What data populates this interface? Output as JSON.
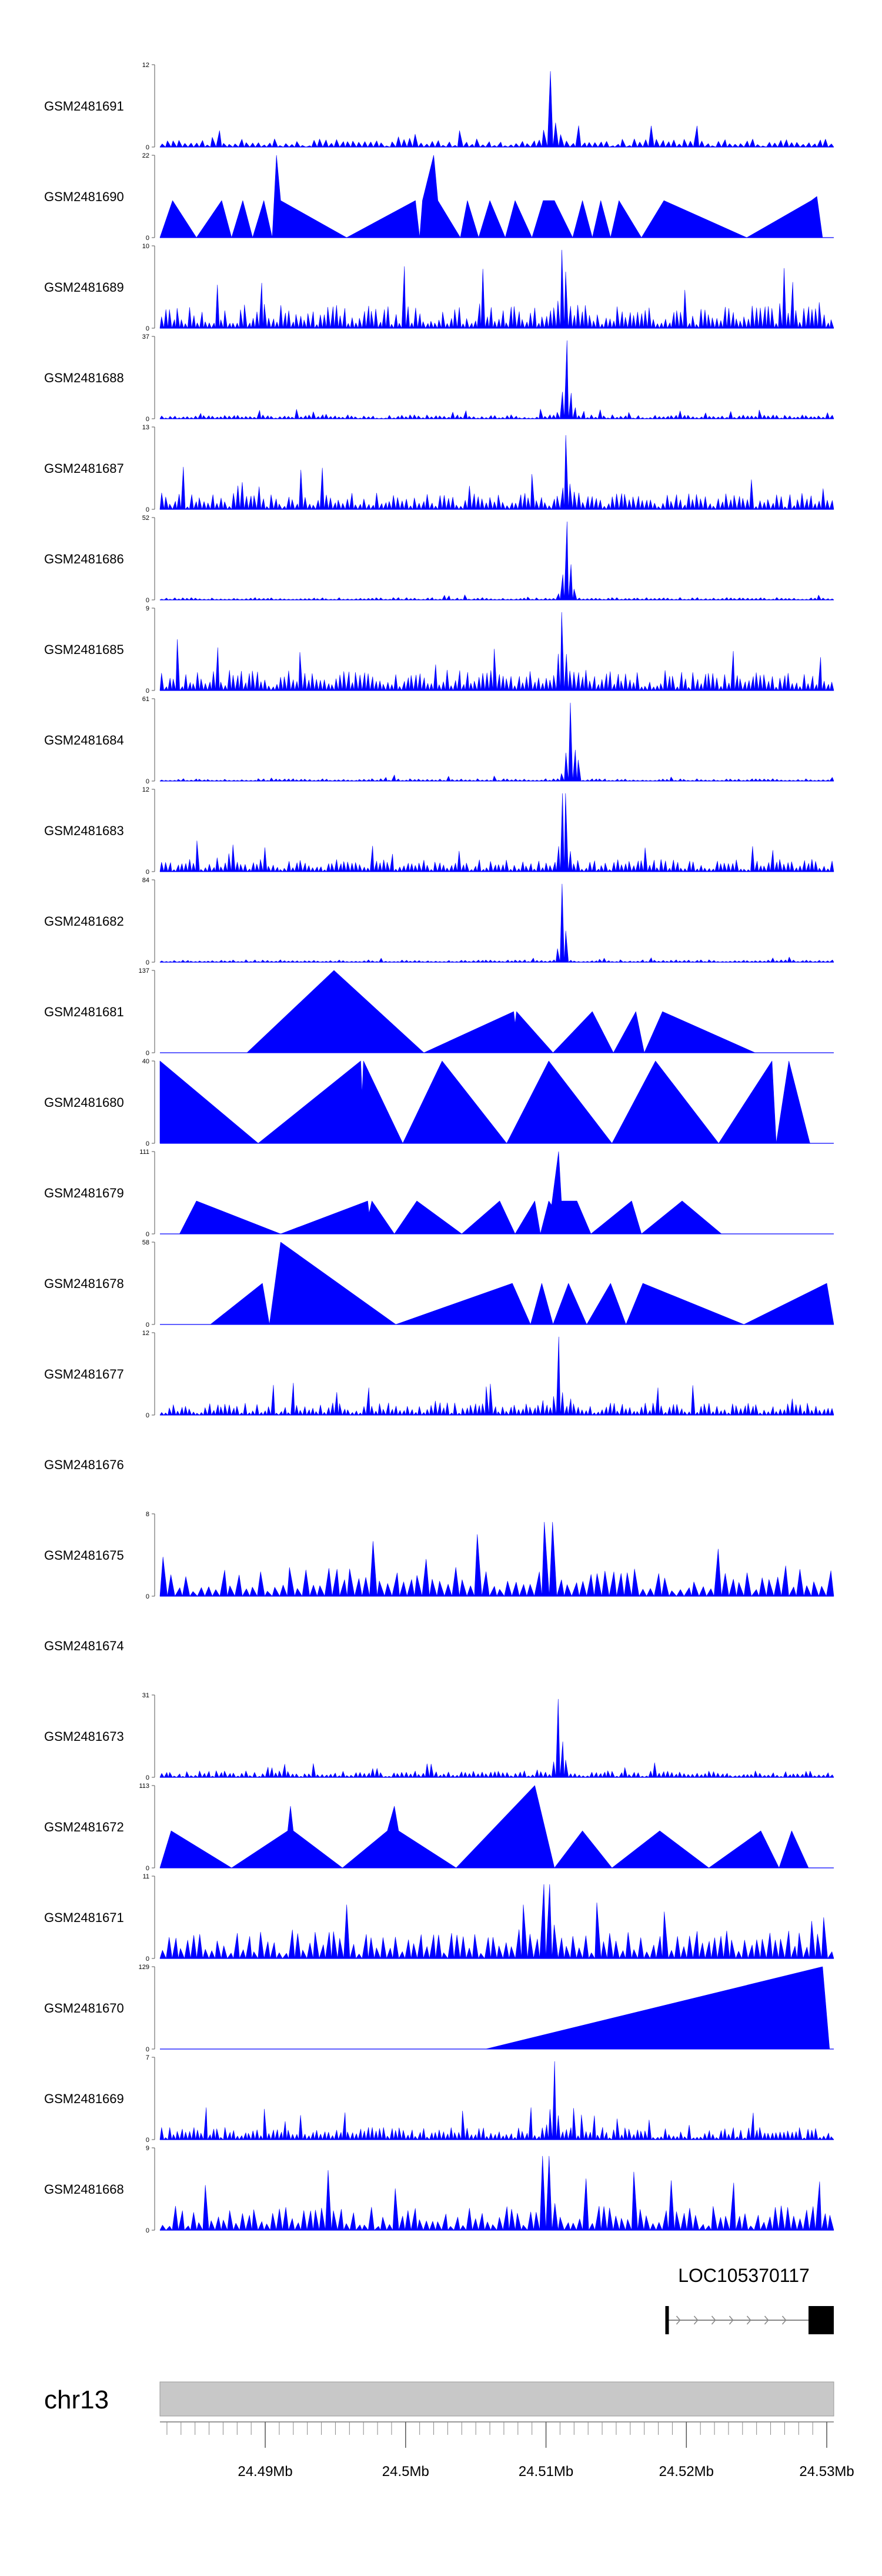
{
  "chart_data": {
    "type": "area",
    "title": "",
    "chromosome": "chr13",
    "x_range": [
      24.4825,
      24.5305
    ],
    "x_unit": "Mb",
    "x_ticks": [
      {
        "value": 24.49,
        "label": "24.49Mb"
      },
      {
        "value": 24.5,
        "label": "24.5Mb"
      },
      {
        "value": 24.51,
        "label": "24.51Mb"
      },
      {
        "value": 24.52,
        "label": "24.52Mb"
      },
      {
        "value": 24.53,
        "label": "24.53Mb"
      }
    ],
    "minor_tick_step": 0.001,
    "fill_color": "#0000ff",
    "gene": {
      "name": "LOC105370117",
      "start": 24.5185,
      "end": 24.5305,
      "strand": "+",
      "exons": [
        [
          24.5185,
          24.5187
        ],
        [
          24.5287,
          24.5305
        ]
      ]
    },
    "tracks": [
      {
        "name": "GSM2481691",
        "ymax": "12",
        "shape": "dense",
        "seed": 11,
        "n": 120,
        "base": 0.1,
        "peaks": [
          [
            24.5103,
            0.0008,
            0.65,
            0.92
          ],
          [
            24.5005,
            0.0003,
            0.5,
            1.0
          ]
        ]
      },
      {
        "name": "GSM2481690",
        "ymax": "22",
        "shape": "tri",
        "points": [
          [
            24.4825,
            0
          ],
          [
            24.4834,
            0.45
          ],
          [
            24.4851,
            0
          ],
          [
            24.4869,
            0.45
          ],
          [
            24.4876,
            0
          ],
          [
            24.4884,
            0.45
          ],
          [
            24.4891,
            0
          ],
          [
            24.4899,
            0.45
          ],
          [
            24.4905,
            0
          ],
          [
            24.4908,
            1.0
          ],
          [
            24.4911,
            0.45
          ],
          [
            24.4958,
            0
          ],
          [
            24.5007,
            0.45
          ],
          [
            24.501,
            0
          ],
          [
            24.5012,
            0.45
          ],
          [
            24.502,
            1.0
          ],
          [
            24.5023,
            0.45
          ],
          [
            24.5039,
            0
          ],
          [
            24.5044,
            0.45
          ],
          [
            24.5052,
            0
          ],
          [
            24.506,
            0.45
          ],
          [
            24.5071,
            0
          ],
          [
            24.5078,
            0.45
          ],
          [
            24.509,
            0
          ],
          [
            24.5098,
            0.45
          ],
          [
            24.5106,
            0.45
          ],
          [
            24.5119,
            0
          ],
          [
            24.5126,
            0.45
          ],
          [
            24.5133,
            0
          ],
          [
            24.5139,
            0.45
          ],
          [
            24.5146,
            0
          ],
          [
            24.5152,
            0.45
          ],
          [
            24.5168,
            0
          ],
          [
            24.5184,
            0.45
          ],
          [
            24.5243,
            0
          ],
          [
            24.5289,
            0.45
          ],
          [
            24.5293,
            0.5
          ],
          [
            24.5297,
            0
          ]
        ]
      },
      {
        "name": "GSM2481689",
        "ymax": "10",
        "shape": "dense",
        "seed": 23,
        "n": 170,
        "base": 0.3,
        "peaks": [
          [
            24.5112,
            0.0008,
            0.7,
            0.95
          ],
          [
            24.5295,
            0.0006,
            0.4,
            0.5
          ]
        ]
      },
      {
        "name": "GSM2481688",
        "ymax": "37",
        "shape": "dense",
        "seed": 37,
        "n": 160,
        "base": 0.05,
        "peaks": [
          [
            24.5115,
            0.0008,
            0.8,
            0.95
          ]
        ]
      },
      {
        "name": "GSM2481687",
        "ymax": "13",
        "shape": "dense",
        "seed": 41,
        "n": 160,
        "base": 0.2,
        "peaks": [
          [
            24.5115,
            0.0008,
            0.6,
            0.9
          ]
        ]
      },
      {
        "name": "GSM2481686",
        "ymax": "52",
        "shape": "dense",
        "seed": 53,
        "n": 160,
        "base": 0.03,
        "peaks": [
          [
            24.5115,
            0.0007,
            0.8,
            0.95
          ]
        ]
      },
      {
        "name": "GSM2481685",
        "ymax": "9",
        "shape": "dense",
        "seed": 61,
        "n": 170,
        "base": 0.25,
        "peaks": [
          [
            24.5112,
            0.0009,
            0.7,
            0.95
          ]
        ]
      },
      {
        "name": "GSM2481684",
        "ymax": "61",
        "shape": "dense",
        "seed": 67,
        "n": 160,
        "base": 0.03,
        "peaks": [
          [
            24.5118,
            0.0008,
            0.8,
            0.95
          ]
        ]
      },
      {
        "name": "GSM2481683",
        "ymax": "12",
        "shape": "dense",
        "seed": 71,
        "n": 170,
        "base": 0.15,
        "peaks": [
          [
            24.5113,
            0.0008,
            0.7,
            0.95
          ]
        ]
      },
      {
        "name": "GSM2481682",
        "ymax": "84",
        "shape": "dense",
        "seed": 79,
        "n": 160,
        "base": 0.03,
        "peaks": [
          [
            24.5112,
            0.0006,
            0.8,
            0.95
          ]
        ]
      },
      {
        "name": "GSM2481681",
        "ymax": "137",
        "shape": "tri",
        "points": [
          [
            24.4887,
            0
          ],
          [
            24.4949,
            1.0
          ],
          [
            24.5013,
            0
          ],
          [
            24.5077,
            0.5
          ],
          [
            24.5078,
            0.35
          ],
          [
            24.5079,
            0.5
          ],
          [
            24.5105,
            0
          ],
          [
            24.5133,
            0.5
          ],
          [
            24.5148,
            0
          ],
          [
            24.5164,
            0.5
          ],
          [
            24.517,
            0
          ],
          [
            24.5183,
            0.5
          ],
          [
            24.5249,
            0
          ]
        ]
      },
      {
        "name": "GSM2481680",
        "ymax": "40",
        "shape": "tri",
        "points": [
          [
            24.4825,
            1.0
          ],
          [
            24.4895,
            0
          ],
          [
            24.4968,
            1.0
          ],
          [
            24.4969,
            0.6
          ],
          [
            24.497,
            1.0
          ],
          [
            24.4998,
            0
          ],
          [
            24.5026,
            1.0
          ],
          [
            24.5072,
            0
          ],
          [
            24.5102,
            1.0
          ],
          [
            24.5147,
            0
          ],
          [
            24.5178,
            1.0
          ],
          [
            24.5223,
            0
          ],
          [
            24.5261,
            1.0
          ],
          [
            24.5264,
            0
          ],
          [
            24.5273,
            1.0
          ],
          [
            24.5288,
            0
          ]
        ]
      },
      {
        "name": "GSM2481679",
        "ymax": "111",
        "shape": "tri",
        "points": [
          [
            24.4839,
            0
          ],
          [
            24.4851,
            0.4
          ],
          [
            24.4911,
            0
          ],
          [
            24.4973,
            0.4
          ],
          [
            24.4974,
            0.25
          ],
          [
            24.4976,
            0.4
          ],
          [
            24.4992,
            0
          ],
          [
            24.5008,
            0.4
          ],
          [
            24.504,
            0
          ],
          [
            24.5067,
            0.4
          ],
          [
            24.5078,
            0
          ],
          [
            24.5092,
            0.4
          ],
          [
            24.5096,
            0
          ],
          [
            24.5102,
            0.4
          ],
          [
            24.5104,
            0.35
          ],
          [
            24.5109,
            1.0
          ],
          [
            24.5111,
            0.4
          ],
          [
            24.5122,
            0.4
          ],
          [
            24.5132,
            0
          ],
          [
            24.5161,
            0.4
          ],
          [
            24.5168,
            0
          ],
          [
            24.5197,
            0.4
          ],
          [
            24.5225,
            0
          ]
        ]
      },
      {
        "name": "GSM2481678",
        "ymax": "58",
        "shape": "tri",
        "points": [
          [
            24.4861,
            0
          ],
          [
            24.4898,
            0.5
          ],
          [
            24.4903,
            0
          ],
          [
            24.4911,
            1.0
          ],
          [
            24.4993,
            0
          ],
          [
            24.5076,
            0.5
          ],
          [
            24.5089,
            0
          ],
          [
            24.5097,
            0.5
          ],
          [
            24.5105,
            0
          ],
          [
            24.5116,
            0.5
          ],
          [
            24.5129,
            0
          ],
          [
            24.5146,
            0.5
          ],
          [
            24.5157,
            0
          ],
          [
            24.5169,
            0.5
          ],
          [
            24.5241,
            0
          ],
          [
            24.53,
            0.5
          ],
          [
            24.5305,
            0
          ]
        ]
      },
      {
        "name": "GSM2481677",
        "ymax": "12",
        "shape": "dense",
        "seed": 97,
        "n": 170,
        "base": 0.15,
        "peaks": [
          [
            24.5109,
            0.0007,
            0.6,
            0.95
          ],
          [
            24.4949,
            0.0003,
            0.3,
            0.4
          ]
        ]
      },
      {
        "name": "GSM2481676",
        "ymax": "",
        "shape": "empty"
      },
      {
        "name": "GSM2481675",
        "ymax": "8",
        "shape": "dense",
        "seed": 101,
        "n": 90,
        "base": 0.35,
        "peaks": [
          [
            24.5102,
            0.0015,
            0.6,
            0.9
          ],
          [
            24.5015,
            0.0005,
            0.6,
            0.9
          ]
        ]
      },
      {
        "name": "GSM2481674",
        "ymax": "",
        "shape": "empty"
      },
      {
        "name": "GSM2481673",
        "ymax": "31",
        "shape": "dense",
        "seed": 113,
        "n": 160,
        "base": 0.08,
        "peaks": [
          [
            24.511,
            0.0008,
            0.7,
            0.95
          ],
          [
            24.5017,
            0.0003,
            0.4,
            0.6
          ]
        ]
      },
      {
        "name": "GSM2481672",
        "ymax": "113",
        "shape": "tri",
        "points": [
          [
            24.4825,
            0
          ],
          [
            24.4833,
            0.45
          ],
          [
            24.4876,
            0
          ],
          [
            24.4916,
            0.45
          ],
          [
            24.4918,
            0.75
          ],
          [
            24.492,
            0.45
          ],
          [
            24.4955,
            0
          ],
          [
            24.4987,
            0.45
          ],
          [
            24.4992,
            0.75
          ],
          [
            24.4995,
            0.45
          ],
          [
            24.5036,
            0
          ],
          [
            24.5092,
            1.0
          ],
          [
            24.5106,
            0
          ],
          [
            24.5126,
            0.45
          ],
          [
            24.5147,
            0
          ],
          [
            24.5181,
            0.45
          ],
          [
            24.5216,
            0
          ],
          [
            24.5253,
            0.45
          ],
          [
            24.5266,
            0
          ],
          [
            24.5275,
            0.45
          ],
          [
            24.5287,
            0
          ]
        ]
      },
      {
        "name": "GSM2481671",
        "ymax": "11",
        "shape": "dense",
        "seed": 131,
        "n": 110,
        "base": 0.35,
        "peaks": [
          [
            24.51,
            0.002,
            0.6,
            0.9
          ],
          [
            24.529,
            0.0004,
            0.6,
            0.8
          ]
        ]
      },
      {
        "name": "GSM2481670",
        "ymax": "129",
        "shape": "tri",
        "points": [
          [
            24.5057,
            0
          ],
          [
            24.5297,
            1.0
          ],
          [
            24.5302,
            0
          ]
        ]
      },
      {
        "name": "GSM2481669",
        "ymax": "7",
        "shape": "dense",
        "seed": 151,
        "n": 170,
        "base": 0.15,
        "peaks": [
          [
            24.5105,
            0.0008,
            0.6,
            0.95
          ]
        ]
      },
      {
        "name": "GSM2481668",
        "ymax": "9",
        "shape": "dense",
        "seed": 163,
        "n": 110,
        "base": 0.3,
        "peaks": [
          [
            24.51,
            0.0015,
            0.6,
            0.9
          ],
          [
            24.495,
            0.0008,
            0.5,
            0.85
          ]
        ]
      }
    ]
  }
}
